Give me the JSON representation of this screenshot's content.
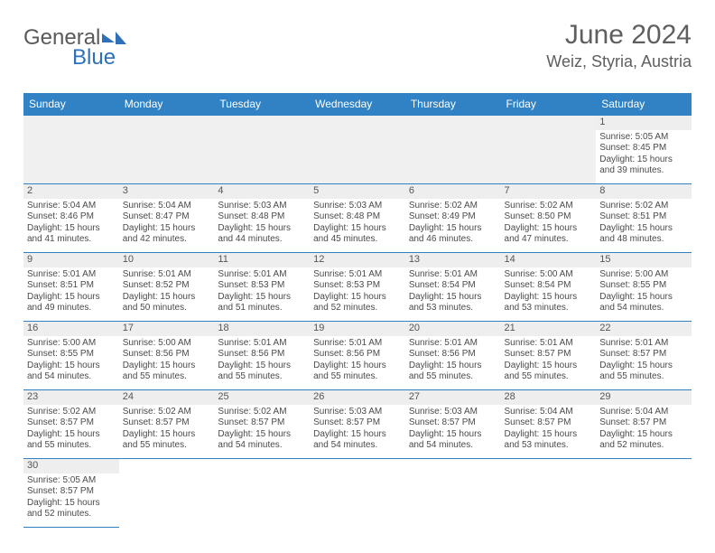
{
  "logo": {
    "general": "General",
    "blue": "Blue"
  },
  "title": "June 2024",
  "location": "Weiz, Styria, Austria",
  "colors": {
    "header_bg": "#3082c4",
    "header_text": "#ffffff",
    "daynum_bg": "#eeeeee",
    "border": "#3082c4"
  },
  "dayHeaders": [
    "Sunday",
    "Monday",
    "Tuesday",
    "Wednesday",
    "Thursday",
    "Friday",
    "Saturday"
  ],
  "weeks": [
    [
      null,
      null,
      null,
      null,
      null,
      null,
      {
        "n": "1",
        "sr": "Sunrise: 5:05 AM",
        "ss": "Sunset: 8:45 PM",
        "dl": "Daylight: 15 hours and 39 minutes."
      }
    ],
    [
      {
        "n": "2",
        "sr": "Sunrise: 5:04 AM",
        "ss": "Sunset: 8:46 PM",
        "dl": "Daylight: 15 hours and 41 minutes."
      },
      {
        "n": "3",
        "sr": "Sunrise: 5:04 AM",
        "ss": "Sunset: 8:47 PM",
        "dl": "Daylight: 15 hours and 42 minutes."
      },
      {
        "n": "4",
        "sr": "Sunrise: 5:03 AM",
        "ss": "Sunset: 8:48 PM",
        "dl": "Daylight: 15 hours and 44 minutes."
      },
      {
        "n": "5",
        "sr": "Sunrise: 5:03 AM",
        "ss": "Sunset: 8:48 PM",
        "dl": "Daylight: 15 hours and 45 minutes."
      },
      {
        "n": "6",
        "sr": "Sunrise: 5:02 AM",
        "ss": "Sunset: 8:49 PM",
        "dl": "Daylight: 15 hours and 46 minutes."
      },
      {
        "n": "7",
        "sr": "Sunrise: 5:02 AM",
        "ss": "Sunset: 8:50 PM",
        "dl": "Daylight: 15 hours and 47 minutes."
      },
      {
        "n": "8",
        "sr": "Sunrise: 5:02 AM",
        "ss": "Sunset: 8:51 PM",
        "dl": "Daylight: 15 hours and 48 minutes."
      }
    ],
    [
      {
        "n": "9",
        "sr": "Sunrise: 5:01 AM",
        "ss": "Sunset: 8:51 PM",
        "dl": "Daylight: 15 hours and 49 minutes."
      },
      {
        "n": "10",
        "sr": "Sunrise: 5:01 AM",
        "ss": "Sunset: 8:52 PM",
        "dl": "Daylight: 15 hours and 50 minutes."
      },
      {
        "n": "11",
        "sr": "Sunrise: 5:01 AM",
        "ss": "Sunset: 8:53 PM",
        "dl": "Daylight: 15 hours and 51 minutes."
      },
      {
        "n": "12",
        "sr": "Sunrise: 5:01 AM",
        "ss": "Sunset: 8:53 PM",
        "dl": "Daylight: 15 hours and 52 minutes."
      },
      {
        "n": "13",
        "sr": "Sunrise: 5:01 AM",
        "ss": "Sunset: 8:54 PM",
        "dl": "Daylight: 15 hours and 53 minutes."
      },
      {
        "n": "14",
        "sr": "Sunrise: 5:00 AM",
        "ss": "Sunset: 8:54 PM",
        "dl": "Daylight: 15 hours and 53 minutes."
      },
      {
        "n": "15",
        "sr": "Sunrise: 5:00 AM",
        "ss": "Sunset: 8:55 PM",
        "dl": "Daylight: 15 hours and 54 minutes."
      }
    ],
    [
      {
        "n": "16",
        "sr": "Sunrise: 5:00 AM",
        "ss": "Sunset: 8:55 PM",
        "dl": "Daylight: 15 hours and 54 minutes."
      },
      {
        "n": "17",
        "sr": "Sunrise: 5:00 AM",
        "ss": "Sunset: 8:56 PM",
        "dl": "Daylight: 15 hours and 55 minutes."
      },
      {
        "n": "18",
        "sr": "Sunrise: 5:01 AM",
        "ss": "Sunset: 8:56 PM",
        "dl": "Daylight: 15 hours and 55 minutes."
      },
      {
        "n": "19",
        "sr": "Sunrise: 5:01 AM",
        "ss": "Sunset: 8:56 PM",
        "dl": "Daylight: 15 hours and 55 minutes."
      },
      {
        "n": "20",
        "sr": "Sunrise: 5:01 AM",
        "ss": "Sunset: 8:56 PM",
        "dl": "Daylight: 15 hours and 55 minutes."
      },
      {
        "n": "21",
        "sr": "Sunrise: 5:01 AM",
        "ss": "Sunset: 8:57 PM",
        "dl": "Daylight: 15 hours and 55 minutes."
      },
      {
        "n": "22",
        "sr": "Sunrise: 5:01 AM",
        "ss": "Sunset: 8:57 PM",
        "dl": "Daylight: 15 hours and 55 minutes."
      }
    ],
    [
      {
        "n": "23",
        "sr": "Sunrise: 5:02 AM",
        "ss": "Sunset: 8:57 PM",
        "dl": "Daylight: 15 hours and 55 minutes."
      },
      {
        "n": "24",
        "sr": "Sunrise: 5:02 AM",
        "ss": "Sunset: 8:57 PM",
        "dl": "Daylight: 15 hours and 55 minutes."
      },
      {
        "n": "25",
        "sr": "Sunrise: 5:02 AM",
        "ss": "Sunset: 8:57 PM",
        "dl": "Daylight: 15 hours and 54 minutes."
      },
      {
        "n": "26",
        "sr": "Sunrise: 5:03 AM",
        "ss": "Sunset: 8:57 PM",
        "dl": "Daylight: 15 hours and 54 minutes."
      },
      {
        "n": "27",
        "sr": "Sunrise: 5:03 AM",
        "ss": "Sunset: 8:57 PM",
        "dl": "Daylight: 15 hours and 54 minutes."
      },
      {
        "n": "28",
        "sr": "Sunrise: 5:04 AM",
        "ss": "Sunset: 8:57 PM",
        "dl": "Daylight: 15 hours and 53 minutes."
      },
      {
        "n": "29",
        "sr": "Sunrise: 5:04 AM",
        "ss": "Sunset: 8:57 PM",
        "dl": "Daylight: 15 hours and 52 minutes."
      }
    ],
    [
      {
        "n": "30",
        "sr": "Sunrise: 5:05 AM",
        "ss": "Sunset: 8:57 PM",
        "dl": "Daylight: 15 hours and 52 minutes."
      },
      null,
      null,
      null,
      null,
      null,
      null
    ]
  ]
}
